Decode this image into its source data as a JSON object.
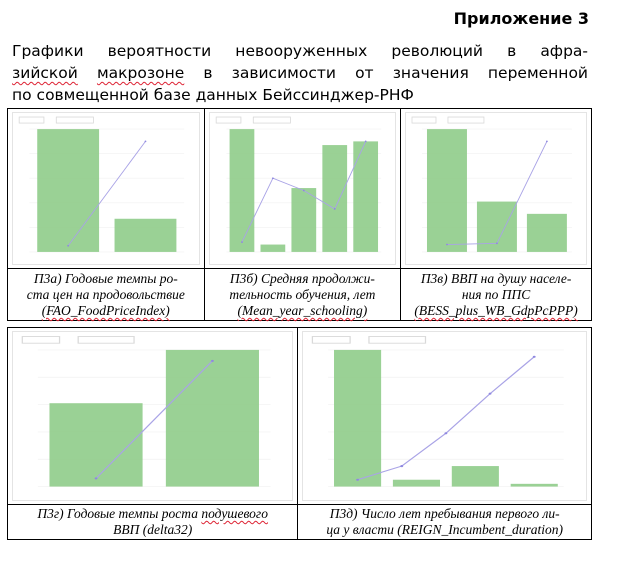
{
  "appendix": "Приложение 3",
  "heading": {
    "line1": "Графики вероятности невооруженных революций в афра-",
    "line2_pre": "",
    "line2_sq": "зийской",
    "line2_mid": " ",
    "line2_sq2": "макрозоне",
    "line2_post": " в зависимости от значения переменной",
    "line3": "по совмещенной базе данных Бейссинджер-РНФ"
  },
  "figures": [
    {
      "id": "p3a",
      "bars": [
        1.0,
        0.27
      ],
      "trend": [
        0.05,
        0.9
      ],
      "caption": "П3а) Годовые темпы ро-ста цен на продовольствие (FAO_FoodPriceIndex)"
    },
    {
      "id": "p3b",
      "bars": [
        1.0,
        0.06,
        0.52,
        0.87,
        0.9
      ],
      "trend": [
        0.08,
        0.6,
        0.5,
        0.35,
        0.9
      ],
      "caption": "П3б) Средняя продолжи-тельность обучения, лет (Mean_year_schooling)"
    },
    {
      "id": "p3v",
      "bars": [
        1.0,
        0.41,
        0.31
      ],
      "trend": [
        0.06,
        0.07,
        0.9
      ],
      "caption": "П3в) ВВП на душу населе-ния по ППС (BESS_plus_WB_GdpPcPPP)"
    },
    {
      "id": "p3g",
      "bars": [
        0.61,
        1.0
      ],
      "trend": [
        0.06,
        0.92
      ],
      "caption": "П3г) Годовые темпы роста подушевого ВВП (delta32)"
    },
    {
      "id": "p3d",
      "bars": [
        1.0,
        0.05,
        0.15,
        0.02
      ],
      "trend": [
        0.05,
        0.15,
        0.39,
        0.68,
        0.95
      ],
      "caption": "П3д) Число лет пребывания первого ли-ца у власти (REIGN_Incumbent_duration)"
    }
  ],
  "captions": {
    "p3a_1": "П3а) Годовые темпы ро-",
    "p3a_2": "ста цен на продовольствие",
    "p3a_3": "(FAO_FoodPriceIndex)",
    "p3b_1": "П3б) Средняя продолжи-",
    "p3b_2": "тельность обучения, лет",
    "p3b_3": "(Mean_year_schooling)",
    "p3v_1": "П3в) ВВП на душу населе-",
    "p3v_2": "ния по ППС",
    "p3v_3": "(BESS_plus_WB_GdpPcPPP)",
    "p3g_1": "П3г) Годовые темпы роста ",
    "p3g_1sq": "подушевого",
    "p3g_2": "ВВП (delta32)",
    "p3d_1": "П3д) Число лет пребывания первого ли-",
    "p3d_2": "ца у власти (REIGN_Incumbent_duration)"
  },
  "colors": {
    "bar": "#8fcc8a",
    "trend": "#a9a3e6",
    "point": "#8f88e0"
  }
}
